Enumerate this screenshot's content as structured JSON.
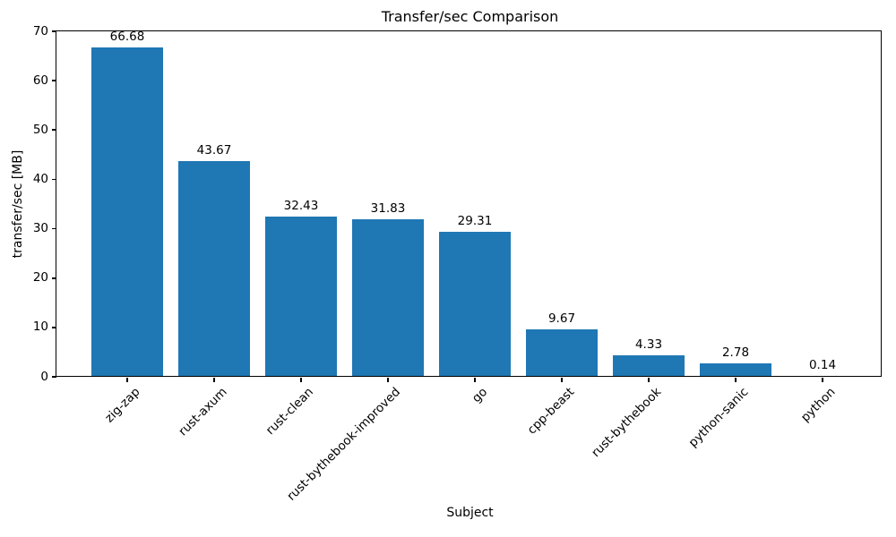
{
  "chart_data": {
    "type": "bar",
    "title": "Transfer/sec Comparison",
    "xlabel": "Subject",
    "ylabel": "transfer/sec [MB]",
    "categories": [
      "zig-zap",
      "rust-axum",
      "rust-clean",
      "rust-bythebook-improved",
      "go",
      "cpp-beast",
      "rust-bythebook",
      "python-sanic",
      "python"
    ],
    "values": [
      66.68,
      43.67,
      32.43,
      31.83,
      29.31,
      9.67,
      4.33,
      2.78,
      0.14
    ],
    "value_label_decimals": 2,
    "ylim": [
      0,
      70
    ],
    "yticks": [
      0,
      10,
      20,
      30,
      40,
      50,
      60,
      70
    ],
    "bar_color": "#1f77b4",
    "grid": false,
    "legend": null,
    "x_tick_rotation": 45
  }
}
